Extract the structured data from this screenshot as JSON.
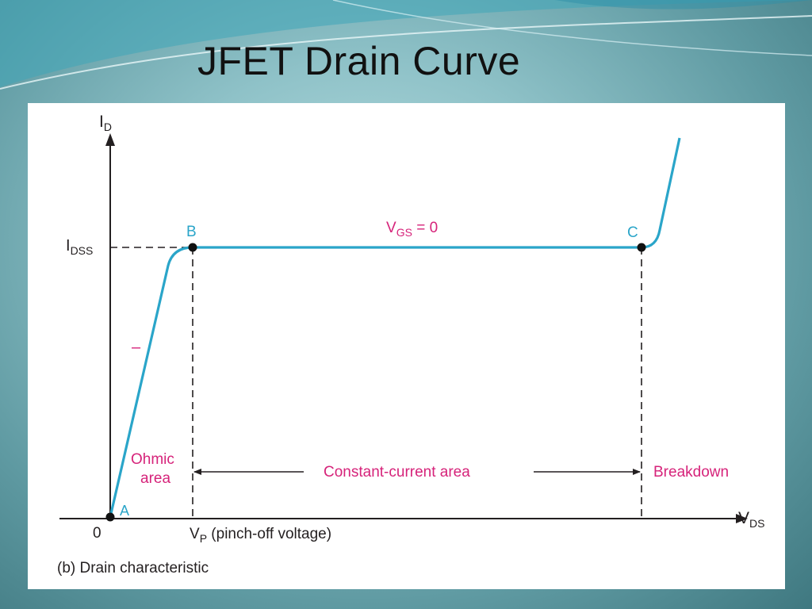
{
  "slide": {
    "title": "JFET Drain Curve"
  },
  "diagram": {
    "y_axis": {
      "symbol": "I",
      "subscript": "D"
    },
    "x_axis": {
      "symbol": "V",
      "subscript": "DS"
    },
    "idss": {
      "symbol": "I",
      "subscript": "DSS"
    },
    "origin_label": "0",
    "points": {
      "a": "A",
      "b": "B",
      "c": "C"
    },
    "vgs": {
      "symbol": "V",
      "subscript": "GS",
      "rest": " = 0"
    },
    "vp": {
      "symbol": "V",
      "subscript": "P",
      "rest": " (pinch-off voltage)"
    },
    "ohmic_dash": "–",
    "regions": {
      "ohmic_line1": "Ohmic",
      "ohmic_line2": "area",
      "constant": "Constant-current area",
      "breakdown": "Breakdown"
    },
    "caption": "(b) Drain characteristic",
    "colors": {
      "curve": "#2aa5c9",
      "region_text": "#d6237a",
      "axis": "#231f20"
    }
  }
}
